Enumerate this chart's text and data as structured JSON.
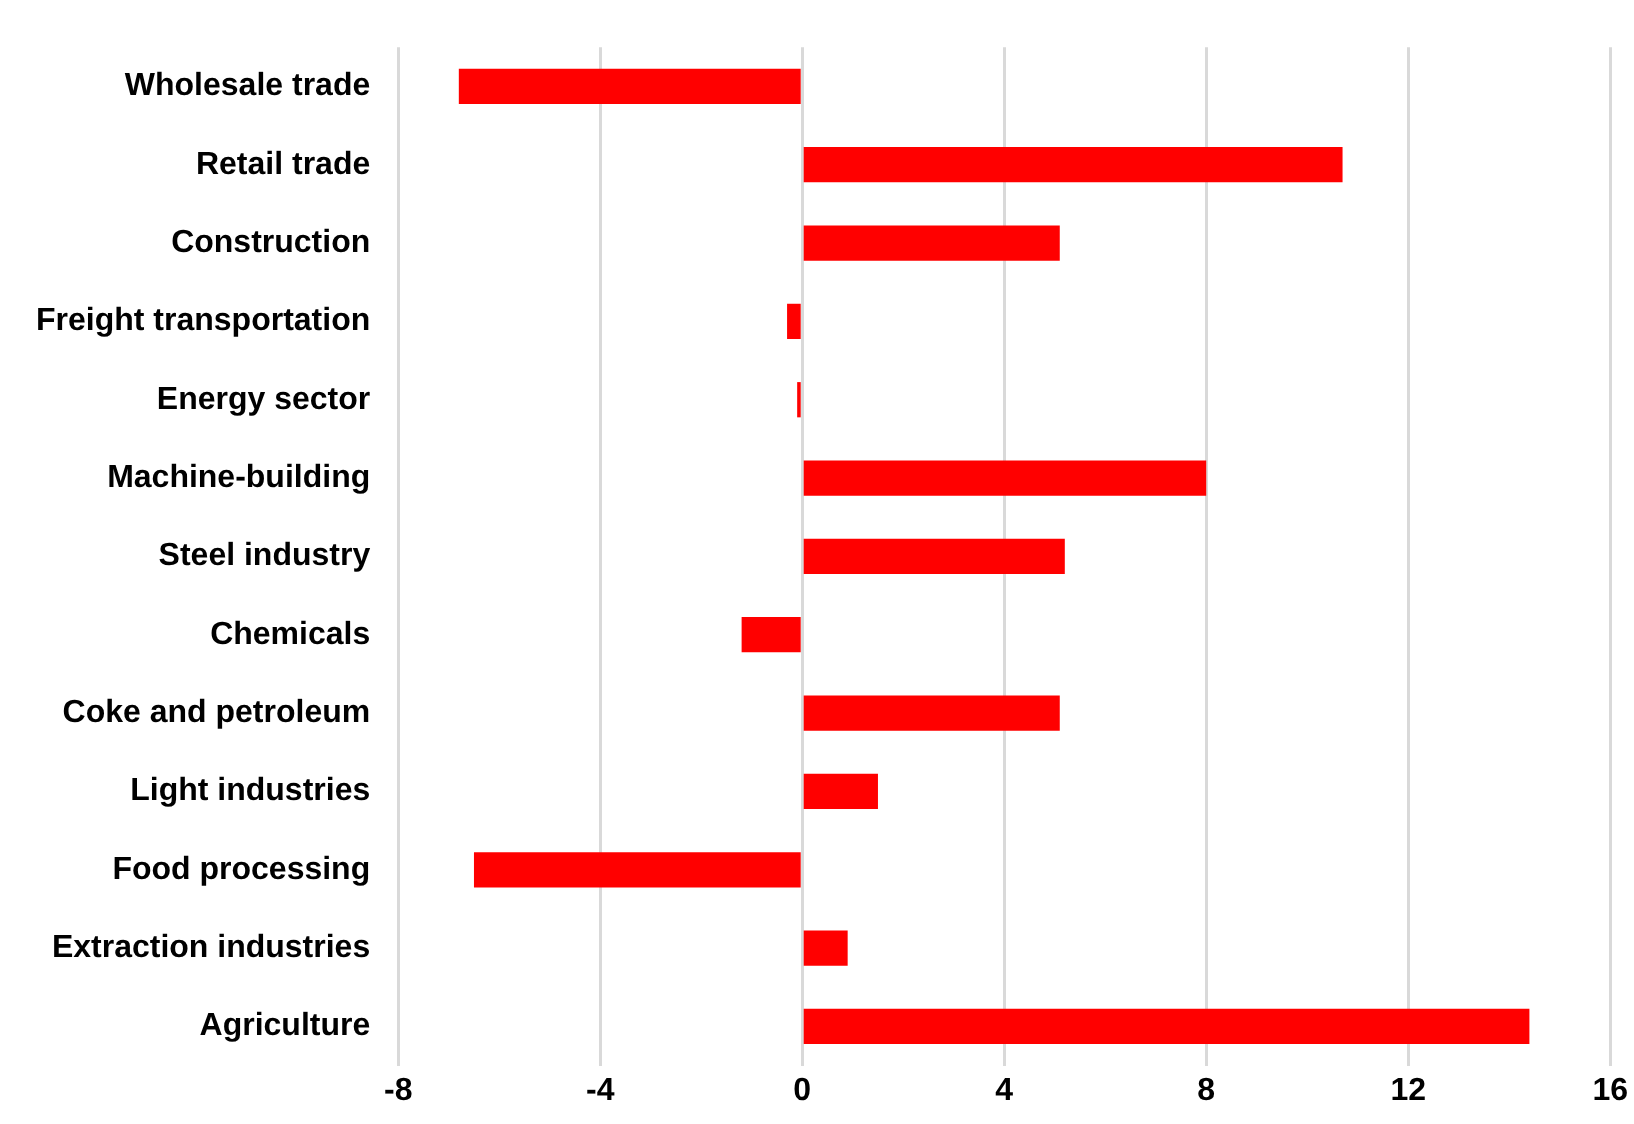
{
  "chart_data": {
    "type": "bar",
    "orientation": "horizontal",
    "categories": [
      "Wholesale trade",
      "Retail trade",
      "Construction",
      "Freight transportation",
      "Energy sector",
      "Machine-building",
      "Steel industry",
      "Chemicals",
      "Coke and petroleum",
      "Light industries",
      "Food processing",
      "Extraction industries",
      "Agriculture"
    ],
    "values": [
      -6.8,
      10.7,
      5.1,
      -0.3,
      -0.1,
      8.0,
      5.2,
      -1.2,
      5.1,
      1.5,
      -6.5,
      0.9,
      14.4
    ],
    "color": "#ff0000",
    "xlim": [
      -8,
      16
    ],
    "xticks": [
      -8,
      -4,
      0,
      4,
      8,
      12,
      16
    ],
    "grid": "x",
    "legend": false
  }
}
